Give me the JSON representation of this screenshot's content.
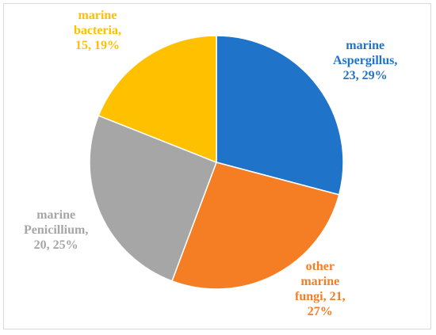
{
  "chart_data": {
    "type": "pie",
    "slices": [
      {
        "category": "marine Aspergillus",
        "value": 23,
        "percent": "29%",
        "color": "#1f74c9",
        "label_lines": [
          "marine",
          "Aspergillus,",
          "23, 29%"
        ]
      },
      {
        "category": "other marine fungi",
        "value": 21,
        "percent": "27%",
        "color": "#f57e24",
        "label_lines": [
          "other",
          "marine",
          "fungi, 21,",
          "27%"
        ]
      },
      {
        "category": "marine Penicillium",
        "value": 20,
        "percent": "25%",
        "color": "#a6a6a6",
        "label_lines": [
          "marine",
          "Penicillium,",
          "20, 25%"
        ]
      },
      {
        "category": "marine bacteria",
        "value": 15,
        "percent": "19%",
        "color": "#ffc000",
        "label_lines": [
          "marine",
          "bacteria,",
          "15, 19%"
        ]
      }
    ],
    "start_angle_deg": 0,
    "direction": "clockwise",
    "slice_border_color": "#ffffff",
    "legend": "none"
  }
}
